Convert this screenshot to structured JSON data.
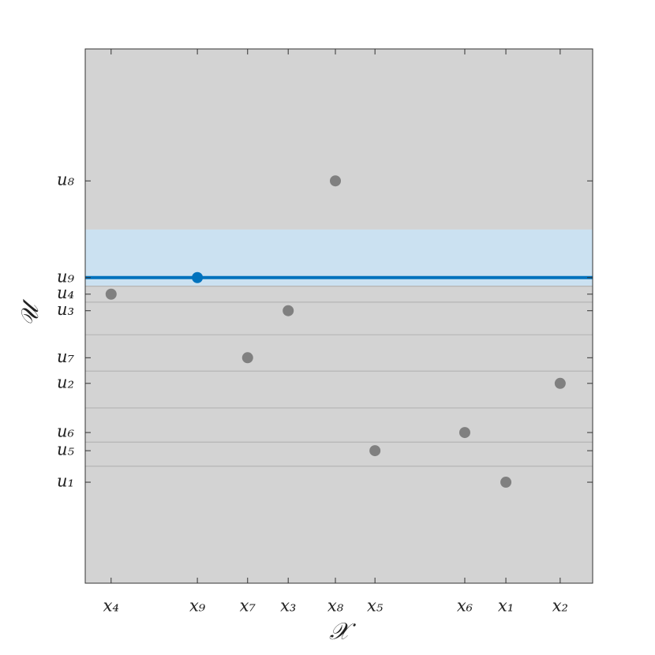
{
  "chart_data": {
    "type": "scatter",
    "xlabel": "𝒳",
    "ylabel": "𝒰",
    "xlim": [
      0,
      100
    ],
    "ylim": [
      0,
      100
    ],
    "xticks": [
      {
        "value": 5.1,
        "label": "x₄"
      },
      {
        "value": 22.1,
        "label": "x₉"
      },
      {
        "value": 32.0,
        "label": "x₇"
      },
      {
        "value": 40.0,
        "label": "x₃"
      },
      {
        "value": 49.3,
        "label": "x₈"
      },
      {
        "value": 57.1,
        "label": "x₅"
      },
      {
        "value": 74.8,
        "label": "x₆"
      },
      {
        "value": 82.9,
        "label": "x₁"
      },
      {
        "value": 93.6,
        "label": "x₂"
      }
    ],
    "yticks": [
      {
        "value": 75.3,
        "label": "u₈"
      },
      {
        "value": 57.2,
        "label": "u₉"
      },
      {
        "value": 54.1,
        "label": "u₄"
      },
      {
        "value": 51.0,
        "label": "u₃"
      },
      {
        "value": 42.2,
        "label": "u₇"
      },
      {
        "value": 37.4,
        "label": "u₂"
      },
      {
        "value": 28.2,
        "label": "u₆"
      },
      {
        "value": 24.8,
        "label": "u₅"
      },
      {
        "value": 18.9,
        "label": "u₁"
      }
    ],
    "hlines": [
      55.6,
      52.6,
      46.5,
      39.7,
      32.8,
      26.4,
      21.9
    ],
    "highlight_band": [
      55.6,
      66.2
    ],
    "highlight_line": 57.2,
    "background": "#d3d3d3",
    "series": [
      {
        "color": "#808080",
        "x": [
          5.1,
          32.0,
          40.0,
          49.3,
          57.1,
          74.8,
          82.9,
          93.6
        ],
        "values": [
          54.1,
          42.2,
          51.0,
          75.3,
          24.8,
          28.2,
          18.9,
          37.4
        ]
      },
      {
        "color": "#0072bd",
        "x": [
          22.1
        ],
        "values": [
          57.2
        ]
      }
    ]
  }
}
